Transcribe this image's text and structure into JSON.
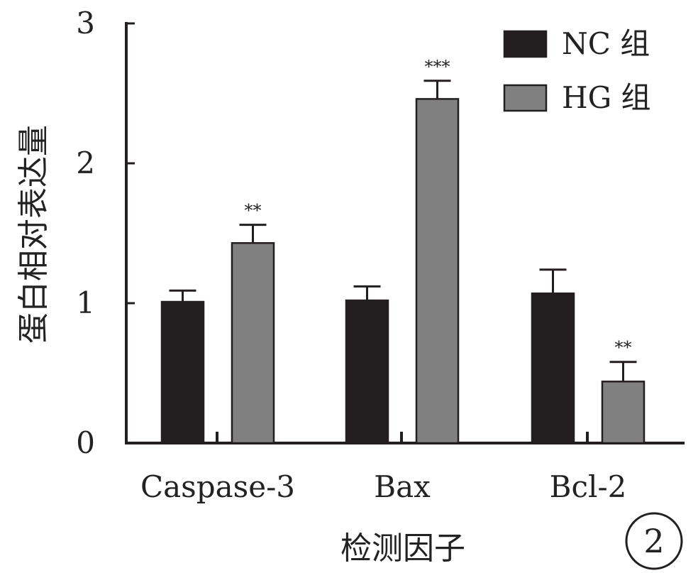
{
  "chart_data": {
    "type": "bar",
    "title": "",
    "xlabel": "检测因子",
    "ylabel": "蛋白相对表达量",
    "categories": [
      "Caspase-3",
      "Bax",
      "Bcl-2"
    ],
    "ylim": [
      0,
      3
    ],
    "yticks": [
      "0",
      "1",
      "2",
      "3"
    ],
    "grid": false,
    "legend_position": "top-right",
    "series": [
      {
        "name": "NC 组",
        "color": "#231f20",
        "values": [
          1.01,
          1.02,
          1.07
        ],
        "errors": [
          0.08,
          0.1,
          0.17
        ],
        "significance": [
          "",
          "",
          ""
        ]
      },
      {
        "name": "HG 组",
        "color": "#808080",
        "values": [
          1.43,
          2.46,
          0.44
        ],
        "errors": [
          0.13,
          0.13,
          0.14
        ],
        "significance": [
          "**",
          "***",
          "**"
        ]
      }
    ],
    "panel_label": "2"
  }
}
